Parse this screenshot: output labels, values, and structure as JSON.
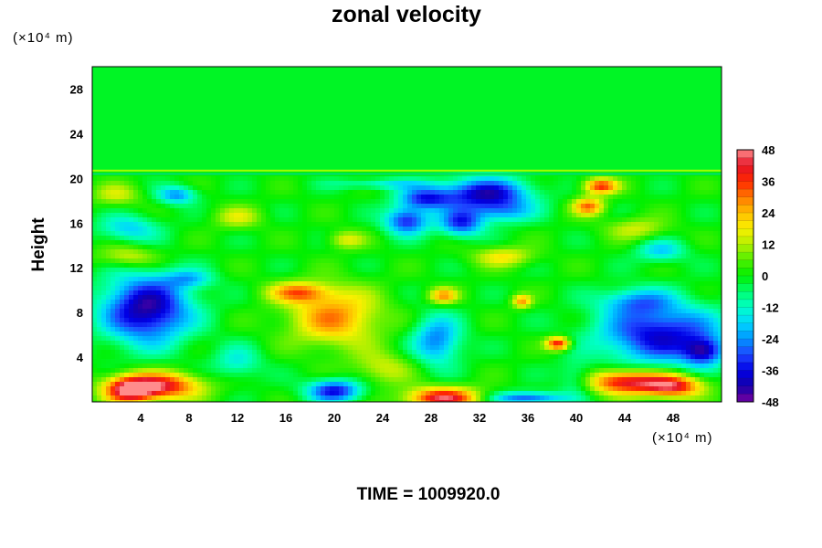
{
  "chart_data": {
    "type": "heatmap",
    "title": "zonal velocity",
    "ylabel": "Height",
    "x_unit": "(×10⁴ m)",
    "y_unit": "(×10⁴ m)",
    "footer": "TIME = 1009920.0",
    "xlim": [
      0,
      52
    ],
    "ylim": [
      0,
      30
    ],
    "x_ticks": [
      4,
      8,
      12,
      16,
      20,
      24,
      28,
      32,
      36,
      40,
      44,
      48
    ],
    "y_ticks": [
      4,
      8,
      12,
      16,
      20,
      24,
      28
    ],
    "colorbar": {
      "min": -48,
      "max": 48,
      "step": 12,
      "ticks": [
        48,
        36,
        24,
        12,
        0,
        -12,
        -24,
        -36,
        -48
      ]
    },
    "features": [
      {
        "x": 4.5,
        "y": 8.3,
        "value": -44,
        "rx": 3.6,
        "ry": 3.0
      },
      {
        "x": 5.5,
        "y": 1.4,
        "value": 42,
        "rx": 3.5,
        "ry": 1.2
      },
      {
        "x": 3.0,
        "y": 1.0,
        "value": 36,
        "rx": 2.0,
        "ry": 1.2
      },
      {
        "x": 20.0,
        "y": 7.6,
        "value": 28,
        "rx": 3.8,
        "ry": 2.6
      },
      {
        "x": 17.0,
        "y": 9.8,
        "value": 26,
        "rx": 2.5,
        "ry": 0.9
      },
      {
        "x": 28.5,
        "y": 5.5,
        "value": -26,
        "rx": 2.0,
        "ry": 2.2
      },
      {
        "x": 29.0,
        "y": 0.3,
        "value": 44,
        "rx": 3.0,
        "ry": 1.0
      },
      {
        "x": 20.0,
        "y": 1.0,
        "value": -36,
        "rx": 2.2,
        "ry": 1.0
      },
      {
        "x": 36.0,
        "y": 0.3,
        "value": -30,
        "rx": 3.0,
        "ry": 0.6
      },
      {
        "x": 47.0,
        "y": 6.0,
        "value": -38,
        "rx": 5.0,
        "ry": 2.6
      },
      {
        "x": 50.5,
        "y": 4.5,
        "value": -30,
        "rx": 1.6,
        "ry": 1.2
      },
      {
        "x": 44.0,
        "y": 1.8,
        "value": 42,
        "rx": 3.2,
        "ry": 1.1
      },
      {
        "x": 48.0,
        "y": 1.4,
        "value": 40,
        "rx": 2.5,
        "ry": 1.0
      },
      {
        "x": 38.5,
        "y": 5.2,
        "value": 40,
        "rx": 1.0,
        "ry": 0.6
      },
      {
        "x": 32.5,
        "y": 18.6,
        "value": -40,
        "rx": 3.6,
        "ry": 1.4
      },
      {
        "x": 27.5,
        "y": 18.2,
        "value": -30,
        "rx": 2.2,
        "ry": 1.0
      },
      {
        "x": 26.0,
        "y": 16.2,
        "value": -34,
        "rx": 1.8,
        "ry": 1.2
      },
      {
        "x": 30.5,
        "y": 16.0,
        "value": -32,
        "rx": 1.8,
        "ry": 1.2
      },
      {
        "x": 42.0,
        "y": 19.3,
        "value": 36,
        "rx": 1.4,
        "ry": 0.7
      },
      {
        "x": 41.0,
        "y": 17.5,
        "value": 30,
        "rx": 1.3,
        "ry": 0.8
      },
      {
        "x": 34.0,
        "y": 17.0,
        "value": -18,
        "rx": 2.5,
        "ry": 1.0
      },
      {
        "x": 7.0,
        "y": 18.5,
        "value": -24,
        "rx": 1.6,
        "ry": 0.8
      },
      {
        "x": 3.0,
        "y": 15.5,
        "value": -18,
        "rx": 2.5,
        "ry": 1.2
      },
      {
        "x": 2.0,
        "y": 18.5,
        "value": 14,
        "rx": 2.0,
        "ry": 1.0
      },
      {
        "x": 21.0,
        "y": 14.5,
        "value": 16,
        "rx": 1.5,
        "ry": 0.8
      },
      {
        "x": 3.0,
        "y": 13.0,
        "value": 16,
        "rx": 2.6,
        "ry": 1.0
      },
      {
        "x": 34.0,
        "y": 13.0,
        "value": 18,
        "rx": 2.5,
        "ry": 0.9
      },
      {
        "x": 47.0,
        "y": 13.5,
        "value": -18,
        "rx": 2.0,
        "ry": 1.0
      },
      {
        "x": 45.0,
        "y": 15.5,
        "value": 14,
        "rx": 2.5,
        "ry": 1.0
      },
      {
        "x": 29.0,
        "y": 9.5,
        "value": 26,
        "rx": 1.2,
        "ry": 0.7
      },
      {
        "x": 35.5,
        "y": 9.0,
        "value": 26,
        "rx": 0.8,
        "ry": 0.6
      },
      {
        "x": 45.0,
        "y": 9.0,
        "value": -20,
        "rx": 3.0,
        "ry": 1.2
      },
      {
        "x": 12.0,
        "y": 3.5,
        "value": -14,
        "rx": 2.0,
        "ry": 1.5
      },
      {
        "x": 40.0,
        "y": 2.0,
        "value": -14,
        "rx": 1.5,
        "ry": 1.5
      },
      {
        "x": 24.0,
        "y": 3.0,
        "value": 14,
        "rx": 2.5,
        "ry": 1.5
      },
      {
        "x": 8.0,
        "y": 11.0,
        "value": -16,
        "rx": 2.0,
        "ry": 0.8
      },
      {
        "x": 24.0,
        "y": 19.5,
        "value": -14,
        "rx": 4.0,
        "ry": 0.5
      },
      {
        "x": 12.0,
        "y": 16.5,
        "value": 14,
        "rx": 2.0,
        "ry": 1.0
      }
    ],
    "upper_layer": {
      "from_y": 20.8,
      "value": -2
    }
  }
}
